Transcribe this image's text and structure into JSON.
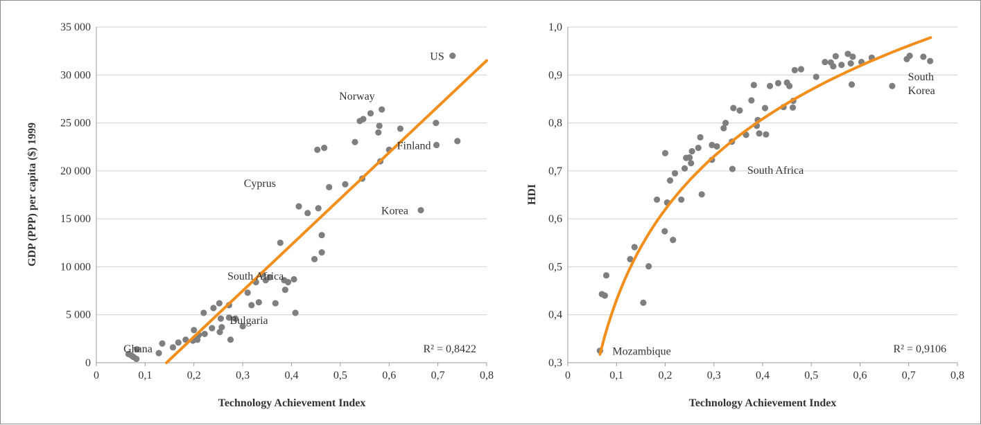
{
  "chart_data": [
    {
      "type": "scatter",
      "xlabel": "Technology Achievement Index",
      "ylabel": "GDP (PPP) per capita ($) 1999",
      "xlim": [
        0,
        0.8
      ],
      "ylim": [
        0,
        35000
      ],
      "xticks": [
        0,
        0.1,
        0.2,
        0.3,
        0.4,
        0.5,
        0.6,
        0.7,
        0.8
      ],
      "xtick_labels": [
        "0",
        "0,1",
        "0,2",
        "0,3",
        "0,4",
        "0,5",
        "0,6",
        "0,7",
        "0,8"
      ],
      "yticks": [
        0,
        5000,
        10000,
        15000,
        20000,
        25000,
        30000,
        35000
      ],
      "ytick_labels": [
        "0",
        "5 000",
        "10 000",
        "15 000",
        "20 000",
        "25 000",
        "30 000",
        "35 000"
      ],
      "grid": true,
      "point_color": "#7f7f7f",
      "trend_color": "#f28e1c",
      "trendline": {
        "type": "linear",
        "slope": 48000,
        "intercept": -6900
      },
      "r2_label": "R² = 0,8422",
      "annotations": [
        {
          "text": "US",
          "x": 0.73,
          "y": 32000
        },
        {
          "text": "Norway",
          "x": 0.585,
          "y": 26400
        },
        {
          "text": "Finland",
          "x": 0.7,
          "y": 22700
        },
        {
          "text": "Cyprus",
          "x": 0.385,
          "y": 19200
        },
        {
          "text": "Korea",
          "x": 0.665,
          "y": 15900
        },
        {
          "text": "South Africa",
          "x": 0.34,
          "y": 9100
        },
        {
          "text": "Bulgaria",
          "x": 0.275,
          "y": 4700
        },
        {
          "text": "Ghana",
          "x": 0.068,
          "y": 800
        }
      ],
      "points": [
        [
          0.066,
          900
        ],
        [
          0.072,
          750
        ],
        [
          0.076,
          600
        ],
        [
          0.082,
          400
        ],
        [
          0.083,
          1400
        ],
        [
          0.128,
          1000
        ],
        [
          0.135,
          2000
        ],
        [
          0.157,
          1600
        ],
        [
          0.168,
          2100
        ],
        [
          0.183,
          2400
        ],
        [
          0.198,
          2300
        ],
        [
          0.2,
          3400
        ],
        [
          0.207,
          2400
        ],
        [
          0.21,
          2900
        ],
        [
          0.22,
          5200
        ],
        [
          0.222,
          3000
        ],
        [
          0.237,
          3600
        ],
        [
          0.24,
          5700
        ],
        [
          0.252,
          6200
        ],
        [
          0.253,
          3200
        ],
        [
          0.255,
          4600
        ],
        [
          0.257,
          3700
        ],
        [
          0.272,
          6000
        ],
        [
          0.272,
          4700
        ],
        [
          0.275,
          2400
        ],
        [
          0.285,
          4600
        ],
        [
          0.3,
          3800
        ],
        [
          0.31,
          7300
        ],
        [
          0.318,
          6000
        ],
        [
          0.327,
          8400
        ],
        [
          0.333,
          6300
        ],
        [
          0.34,
          9200
        ],
        [
          0.347,
          8600
        ],
        [
          0.355,
          8900
        ],
        [
          0.367,
          6200
        ],
        [
          0.377,
          12500
        ],
        [
          0.385,
          8600
        ],
        [
          0.387,
          7600
        ],
        [
          0.393,
          8400
        ],
        [
          0.405,
          8700
        ],
        [
          0.408,
          5200
        ],
        [
          0.415,
          16300
        ],
        [
          0.433,
          15600
        ],
        [
          0.447,
          10800
        ],
        [
          0.453,
          22200
        ],
        [
          0.455,
          16100
        ],
        [
          0.462,
          11500
        ],
        [
          0.462,
          13300
        ],
        [
          0.467,
          22400
        ],
        [
          0.477,
          18300
        ],
        [
          0.51,
          18600
        ],
        [
          0.53,
          23000
        ],
        [
          0.54,
          25200
        ],
        [
          0.545,
          19200
        ],
        [
          0.547,
          25400
        ],
        [
          0.562,
          26000
        ],
        [
          0.578,
          24000
        ],
        [
          0.58,
          24700
        ],
        [
          0.582,
          21000
        ],
        [
          0.585,
          26400
        ],
        [
          0.6,
          22200
        ],
        [
          0.623,
          24400
        ],
        [
          0.665,
          15900
        ],
        [
          0.696,
          25000
        ],
        [
          0.697,
          22700
        ],
        [
          0.73,
          32000
        ],
        [
          0.74,
          23100
        ]
      ]
    },
    {
      "type": "scatter",
      "xlabel": "Technology Achievement Index",
      "ylabel": "HDI",
      "xlim": [
        0,
        0.8
      ],
      "ylim": [
        0.3,
        1.0
      ],
      "xticks": [
        0,
        0.1,
        0.2,
        0.3,
        0.4,
        0.5,
        0.6,
        0.7,
        0.8
      ],
      "xtick_labels": [
        "0",
        "0,1",
        "0,2",
        "0,3",
        "0,4",
        "0,5",
        "0,6",
        "0,7",
        "0,8"
      ],
      "yticks": [
        0.3,
        0.4,
        0.5,
        0.6,
        0.7,
        0.8,
        0.9,
        1.0
      ],
      "ytick_labels": [
        "0,3",
        "0,4",
        "0,5",
        "0,6",
        "0,7",
        "0,8",
        "0,9",
        "1,0"
      ],
      "grid": true,
      "point_color": "#7f7f7f",
      "trend_color": "#f28e1c",
      "trendline": {
        "type": "log",
        "a": 0.2725,
        "b": 1.0581,
        "x_range": [
          0.066,
          0.745
        ]
      },
      "r2_label": "R² = 0,9106",
      "annotations": [
        {
          "text": "Mozambique",
          "x": 0.066,
          "y": 0.325
        },
        {
          "text": "South Africa",
          "x": 0.34,
          "y": 0.703
        },
        {
          "text": "South",
          "x": 0.67,
          "y": 0.877
        },
        {
          "text": "Korea",
          "x": 0.67,
          "y": 0.877
        }
      ],
      "points": [
        [
          0.066,
          0.325
        ],
        [
          0.07,
          0.443
        ],
        [
          0.076,
          0.44
        ],
        [
          0.079,
          0.482
        ],
        [
          0.128,
          0.516
        ],
        [
          0.137,
          0.541
        ],
        [
          0.155,
          0.425
        ],
        [
          0.166,
          0.501
        ],
        [
          0.183,
          0.64
        ],
        [
          0.199,
          0.574
        ],
        [
          0.2,
          0.737
        ],
        [
          0.204,
          0.634
        ],
        [
          0.21,
          0.68
        ],
        [
          0.216,
          0.556
        ],
        [
          0.22,
          0.695
        ],
        [
          0.233,
          0.64
        ],
        [
          0.24,
          0.705
        ],
        [
          0.243,
          0.727
        ],
        [
          0.25,
          0.728
        ],
        [
          0.253,
          0.716
        ],
        [
          0.255,
          0.741
        ],
        [
          0.268,
          0.748
        ],
        [
          0.272,
          0.77
        ],
        [
          0.275,
          0.651
        ],
        [
          0.296,
          0.723
        ],
        [
          0.296,
          0.754
        ],
        [
          0.306,
          0.751
        ],
        [
          0.32,
          0.789
        ],
        [
          0.324,
          0.8
        ],
        [
          0.337,
          0.761
        ],
        [
          0.338,
          0.704
        ],
        [
          0.34,
          0.831
        ],
        [
          0.353,
          0.826
        ],
        [
          0.366,
          0.775
        ],
        [
          0.377,
          0.847
        ],
        [
          0.382,
          0.879
        ],
        [
          0.388,
          0.794
        ],
        [
          0.39,
          0.806
        ],
        [
          0.393,
          0.778
        ],
        [
          0.405,
          0.831
        ],
        [
          0.407,
          0.776
        ],
        [
          0.415,
          0.877
        ],
        [
          0.432,
          0.883
        ],
        [
          0.443,
          0.833
        ],
        [
          0.45,
          0.884
        ],
        [
          0.455,
          0.877
        ],
        [
          0.462,
          0.832
        ],
        [
          0.463,
          0.846
        ],
        [
          0.466,
          0.91
        ],
        [
          0.479,
          0.912
        ],
        [
          0.51,
          0.896
        ],
        [
          0.528,
          0.927
        ],
        [
          0.54,
          0.926
        ],
        [
          0.545,
          0.918
        ],
        [
          0.55,
          0.939
        ],
        [
          0.562,
          0.921
        ],
        [
          0.575,
          0.944
        ],
        [
          0.581,
          0.924
        ],
        [
          0.583,
          0.88
        ],
        [
          0.585,
          0.938
        ],
        [
          0.603,
          0.927
        ],
        [
          0.624,
          0.936
        ],
        [
          0.666,
          0.877
        ],
        [
          0.696,
          0.933
        ],
        [
          0.702,
          0.94
        ],
        [
          0.73,
          0.938
        ],
        [
          0.744,
          0.929
        ]
      ]
    }
  ]
}
